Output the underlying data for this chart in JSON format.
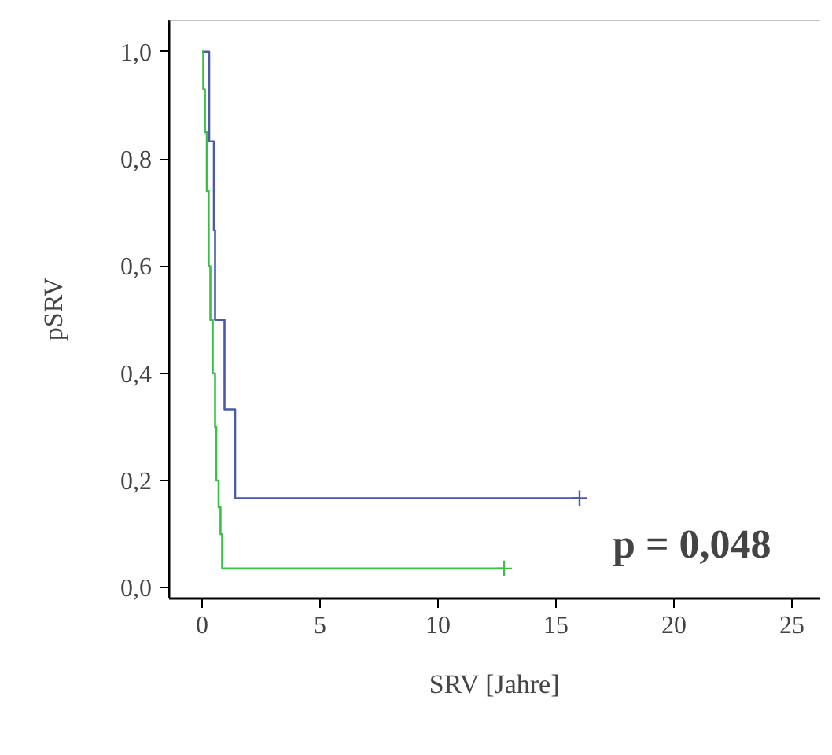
{
  "chart_data": {
    "type": "step",
    "xlabel": "SRV [Jahre]",
    "ylabel": "pSRV",
    "xlim": [
      -1.4,
      26.2
    ],
    "ylim": [
      -0.02,
      1.06
    ],
    "xticks": [
      0,
      5,
      10,
      15,
      20,
      25
    ],
    "yticks": [
      {
        "value": 0,
        "label": "0,0"
      },
      {
        "value": 0.2,
        "label": "0,2"
      },
      {
        "value": 0.4,
        "label": "0,4"
      },
      {
        "value": 0.6,
        "label": "0,6"
      },
      {
        "value": 0.8,
        "label": "0,8"
      },
      {
        "value": 1.0,
        "label": "1,0"
      }
    ],
    "series": [
      {
        "color": "#4a5aa8",
        "x": [
          0,
          0.3,
          0.5,
          0.55,
          0.95,
          1.4,
          16
        ],
        "values": [
          1.0,
          0.833,
          0.667,
          0.5,
          0.333,
          0.167,
          0.167
        ]
      },
      {
        "color": "#3cbf4a",
        "x": [
          0,
          0.05,
          0.12,
          0.2,
          0.28,
          0.35,
          0.45,
          0.55,
          0.6,
          0.7,
          0.78,
          0.85,
          12.8
        ],
        "values": [
          1.0,
          0.93,
          0.85,
          0.74,
          0.6,
          0.5,
          0.4,
          0.3,
          0.2,
          0.15,
          0.1,
          0.036,
          0.036
        ]
      },
      {
        "type": "scatter",
        "marker": "cross",
        "color": "#4a5aa8",
        "x": [
          16
        ],
        "values": [
          0.167
        ]
      },
      {
        "type": "scatter",
        "marker": "cross",
        "color": "#3cbf4a",
        "x": [
          12.8
        ],
        "values": [
          0.036
        ]
      }
    ],
    "annotations": [
      "p = 0,048"
    ],
    "grid": false
  }
}
